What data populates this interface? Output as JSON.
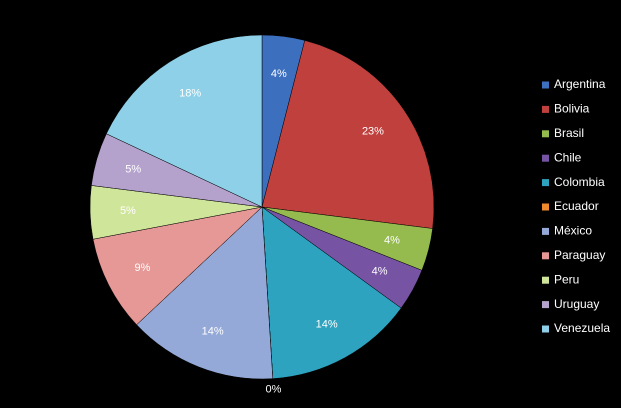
{
  "chart_data": {
    "type": "pie",
    "categories": [
      "Argentina",
      "Bolivia",
      "Brasil",
      "Chile",
      "Colombia",
      "Ecuador",
      "México",
      "Paraguay",
      "Peru",
      "Uruguay",
      "Venezuela"
    ],
    "values": [
      4,
      23,
      4,
      4,
      14,
      0,
      14,
      9,
      5,
      5,
      18
    ],
    "value_labels": [
      "4%",
      "23%",
      "4%",
      "4%",
      "14%",
      "0%",
      "14%",
      "9%",
      "5%",
      "5%",
      "18%"
    ],
    "colors": [
      "#3d6fbf",
      "#c0403d",
      "#95bb4e",
      "#7653a3",
      "#2ea3bf",
      "#f08a2f",
      "#94a9d8",
      "#e59896",
      "#cfe59a",
      "#b4a2cd",
      "#8dd0e7"
    ],
    "legend": "right"
  }
}
